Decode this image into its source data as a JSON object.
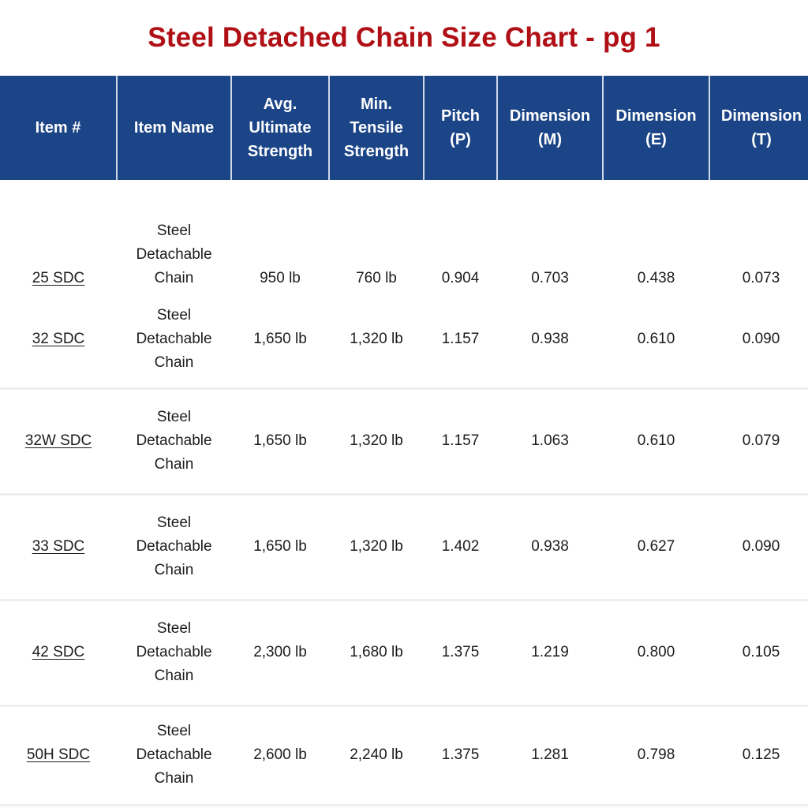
{
  "title": "Steel Detached Chain Size Chart - pg 1",
  "colors": {
    "title_red": "#B00F15",
    "header_blue": "#1C4587",
    "header_divider": "#cfd9ea",
    "row_separator": "#efefef",
    "body_text": "#1c1c1c"
  },
  "table": {
    "columns": [
      {
        "label": "Item #"
      },
      {
        "label": "Item Name"
      },
      {
        "label": "Avg.\nUltimate\nStrength"
      },
      {
        "label": "Min.\nTensile\nStrength"
      },
      {
        "label": "Pitch\n(P)"
      },
      {
        "label": "Dimension\n(M)"
      },
      {
        "label": "Dimension\n(E)"
      },
      {
        "label": "Dimension\n(T)"
      }
    ],
    "rows": [
      {
        "item": "25 SDC",
        "name": "Steel\nDetachable\nChain",
        "avg_ultimate": "950 lb",
        "min_tensile": "760 lb",
        "pitch": "0.904",
        "dim_m": "0.703",
        "dim_e": "0.438",
        "dim_t": "0.073"
      },
      {
        "item": "32 SDC",
        "name": "Steel\nDetachable\nChain",
        "avg_ultimate": "1,650 lb",
        "min_tensile": "1,320 lb",
        "pitch": "1.157",
        "dim_m": "0.938",
        "dim_e": "0.610",
        "dim_t": "0.090"
      },
      {
        "item": "32W SDC",
        "name": "Steel\nDetachable\nChain",
        "avg_ultimate": "1,650 lb",
        "min_tensile": "1,320 lb",
        "pitch": "1.157",
        "dim_m": "1.063",
        "dim_e": "0.610",
        "dim_t": "0.079"
      },
      {
        "item": "33 SDC",
        "name": "Steel\nDetachable\nChain",
        "avg_ultimate": "1,650 lb",
        "min_tensile": "1,320 lb",
        "pitch": "1.402",
        "dim_m": "0.938",
        "dim_e": "0.627",
        "dim_t": "0.090"
      },
      {
        "item": "42 SDC",
        "name": "Steel\nDetachable\nChain",
        "avg_ultimate": "2,300 lb",
        "min_tensile": "1,680 lb",
        "pitch": "1.375",
        "dim_m": "1.219",
        "dim_e": "0.800",
        "dim_t": "0.105"
      },
      {
        "item": "50H SDC",
        "name": "Steel\nDetachable\nChain",
        "avg_ultimate": "2,600 lb",
        "min_tensile": "2,240 lb",
        "pitch": "1.375",
        "dim_m": "1.281",
        "dim_e": "0.798",
        "dim_t": "0.125"
      }
    ]
  },
  "chart_data": {
    "type": "table",
    "title": "Steel Detached Chain Size Chart - pg 1",
    "columns": [
      "Item #",
      "Item Name",
      "Avg. Ultimate Strength",
      "Min. Tensile Strength",
      "Pitch (P)",
      "Dimension (M)",
      "Dimension (E)",
      "Dimension (T)"
    ],
    "rows": [
      [
        "25 SDC",
        "Steel Detachable Chain",
        "950 lb",
        "760 lb",
        0.904,
        0.703,
        0.438,
        0.073
      ],
      [
        "32 SDC",
        "Steel Detachable Chain",
        "1,650 lb",
        "1,320 lb",
        1.157,
        0.938,
        0.61,
        0.09
      ],
      [
        "32W SDC",
        "Steel Detachable Chain",
        "1,650 lb",
        "1,320 lb",
        1.157,
        1.063,
        0.61,
        0.079
      ],
      [
        "33 SDC",
        "Steel Detachable Chain",
        "1,650 lb",
        "1,320 lb",
        1.402,
        0.938,
        0.627,
        0.09
      ],
      [
        "42 SDC",
        "Steel Detachable Chain",
        "2,300 lb",
        "1,680 lb",
        1.375,
        1.219,
        0.8,
        0.105
      ],
      [
        "50H SDC",
        "Steel Detachable Chain",
        "2,600 lb",
        "2,240 lb",
        1.375,
        1.281,
        0.798,
        0.125
      ]
    ]
  }
}
